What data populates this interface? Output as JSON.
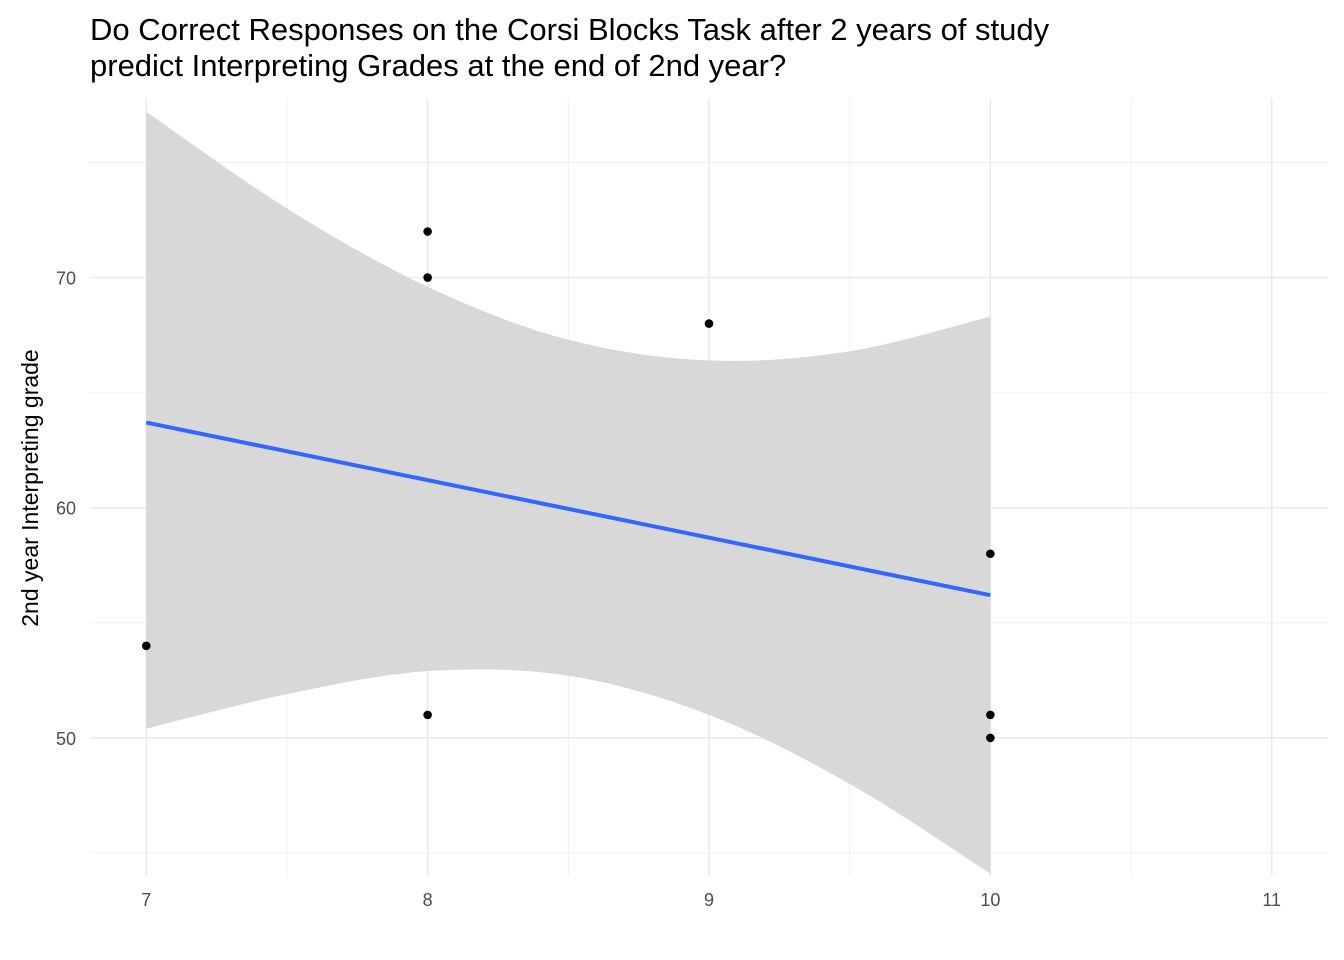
{
  "chart_data": {
    "type": "scatter",
    "title_lines": [
      "Do Correct Responses on the Corsi Blocks Task after 2 years of study",
      "predict Interpreting Grades at the end of 2nd year?"
    ],
    "xlabel": "",
    "ylabel": "2nd year Interpreting grade",
    "xlim": [
      6.8,
      11.2
    ],
    "ylim": [
      44.0,
      77.8
    ],
    "x_ticks": [
      7,
      8,
      9,
      10,
      11
    ],
    "y_ticks": [
      50,
      60,
      70
    ],
    "x_minor": [
      7.5,
      8.5,
      9.5,
      10.5
    ],
    "y_minor": [
      45,
      55,
      65,
      75
    ],
    "grid": true,
    "points": [
      {
        "x": 7,
        "y": 54
      },
      {
        "x": 8,
        "y": 72
      },
      {
        "x": 8,
        "y": 70
      },
      {
        "x": 8,
        "y": 51
      },
      {
        "x": 9,
        "y": 68
      },
      {
        "x": 10,
        "y": 58
      },
      {
        "x": 10,
        "y": 51
      },
      {
        "x": 10,
        "y": 50
      }
    ],
    "fit_line": {
      "x": [
        7,
        10
      ],
      "y": [
        63.7,
        56.2
      ],
      "color": "#3366FF"
    },
    "confidence_band": {
      "x": [
        7,
        7.5,
        8,
        8.5,
        9,
        9.5,
        10
      ],
      "upper": [
        77.2,
        73.0,
        69.6,
        67.3,
        66.4,
        66.8,
        68.3
      ],
      "lower": [
        50.4,
        51.9,
        52.9,
        52.7,
        51.0,
        48.0,
        44.1
      ],
      "color": "#d6d6d6"
    },
    "point_color": "#000000"
  }
}
